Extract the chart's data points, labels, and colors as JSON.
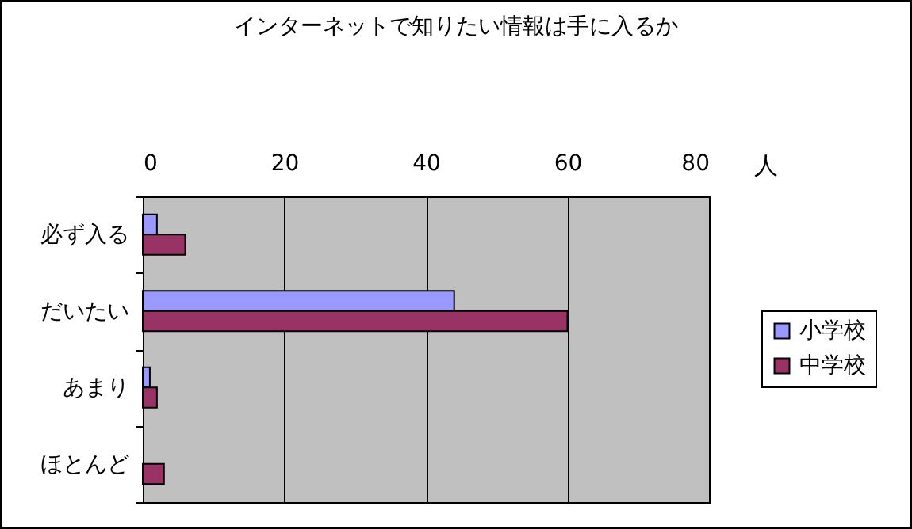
{
  "chart_data": {
    "type": "bar",
    "orientation": "horizontal",
    "title": "インターネットで知りたい情報は手に入るか",
    "xlabel": "人",
    "categories": [
      "必ず入る",
      "だいたい",
      "あまり",
      "ほとんど"
    ],
    "series": [
      {
        "name": "小学校",
        "color": "#9999ff",
        "values": [
          2,
          44,
          1,
          null
        ]
      },
      {
        "name": "中学校",
        "color": "#993366",
        "values": [
          6,
          60,
          2,
          3
        ]
      }
    ],
    "xlim": [
      0,
      80
    ],
    "xticks": [
      0,
      20,
      40,
      60,
      80
    ],
    "grid": "x",
    "legend": "right"
  }
}
